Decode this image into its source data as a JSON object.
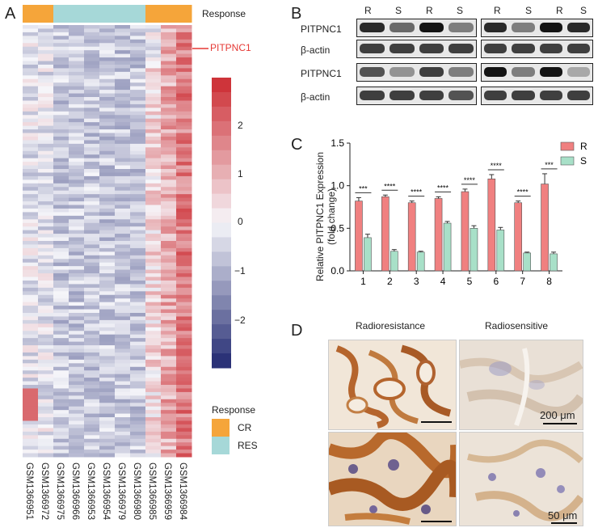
{
  "panel_labels": [
    "A",
    "B",
    "C",
    "D"
  ],
  "panelA": {
    "response_label": "Response",
    "gene_label": "PITPNC1",
    "samples": [
      "GSM1366951",
      "GSM1366972",
      "GSM1366975",
      "GSM1366966",
      "GSM1366953",
      "GSM1366954",
      "GSM1366979",
      "GSM1366980",
      "GSM1366985",
      "GSM1366959",
      "GSM1366984"
    ],
    "sample_groups": [
      "CR",
      "CR",
      "RES",
      "RES",
      "RES",
      "RES",
      "RES",
      "RES",
      "CR",
      "CR",
      "CR"
    ],
    "colorbar_ticks": [
      "2",
      "1",
      "0",
      "−1",
      "−2"
    ],
    "legend_title": "Response",
    "legend": [
      {
        "label": "CR",
        "color": "#f5a53a"
      },
      {
        "label": "RES",
        "color": "#a6d8d8"
      }
    ]
  },
  "panelB": {
    "lane_labels": [
      "R",
      "S",
      "R",
      "S",
      "R",
      "S",
      "R",
      "S"
    ],
    "row_labels": [
      "PITPNC1",
      "β-actin",
      "PITPNC1",
      "β-actin"
    ]
  },
  "chart_data": {
    "type": "bar",
    "categories": [
      "1",
      "2",
      "3",
      "4",
      "5",
      "6",
      "7",
      "8"
    ],
    "series": [
      {
        "name": "R",
        "values": [
          0.82,
          0.87,
          0.8,
          0.85,
          0.93,
          1.08,
          0.8,
          1.02
        ],
        "errors": [
          0.04,
          0.02,
          0.02,
          0.02,
          0.03,
          0.05,
          0.02,
          0.12
        ],
        "color": "#f08080"
      },
      {
        "name": "S",
        "values": [
          0.39,
          0.23,
          0.22,
          0.56,
          0.5,
          0.48,
          0.21,
          0.2
        ],
        "errors": [
          0.04,
          0.02,
          0.01,
          0.02,
          0.03,
          0.03,
          0.01,
          0.02
        ],
        "color": "#a8e0c8"
      }
    ],
    "significance": [
      "***",
      "****",
      "****",
      "****",
      "****",
      "****",
      "****",
      "***"
    ],
    "ylabel": "Relative PITPNC1 Expression (fold change)",
    "ylim": [
      0,
      1.5
    ],
    "yticks": [
      "0.0",
      "0.5",
      "1.0",
      "1.5"
    ]
  },
  "panelD": {
    "col_labels": [
      "Radioresistance",
      "Radiosensitive"
    ],
    "scale_labels": [
      "200 μm",
      "50 μm"
    ]
  }
}
